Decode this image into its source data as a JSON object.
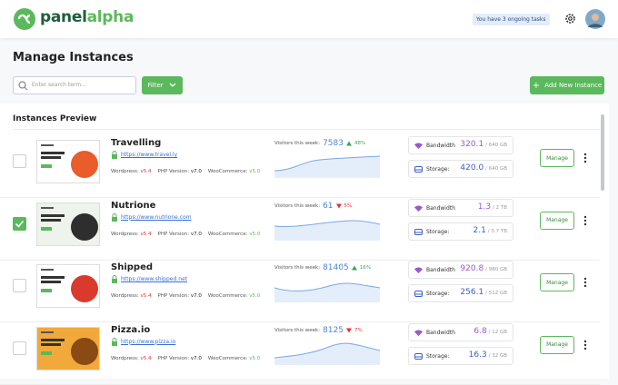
{
  "header": {
    "logo_part1": "panel",
    "logo_part2": "alpha",
    "tasks": "You have 3 ongoing tasks"
  },
  "page_title": "Manage Instances",
  "toolbar": {
    "search_placeholder": "Enter search term...",
    "filter": "Filter",
    "add": "Add New Instance"
  },
  "section_title": "Instances Preview",
  "labels": {
    "wordpress": "Wordpress:",
    "php": "PHP Version:",
    "woo": "WooCommerce:",
    "visitors": "Visitors this week:",
    "bandwidth": "Bandwidth",
    "storage": "Storage:",
    "manage": "Manage"
  },
  "instances": [
    {
      "name": "Travelling",
      "url": "https://www.travel.ly",
      "wordpress": "v5.4",
      "php": "v7.0",
      "woo": "v5.0",
      "visitors": "7583",
      "change": "48%",
      "trend": "up",
      "bandwidth": "320.1",
      "bandwidth_total": "/ 640 GB",
      "storage": "420.0",
      "storage_total": "/ 640 GB",
      "checked": false,
      "thumb": "#ffffff",
      "accent": "#e85d2a"
    },
    {
      "name": "Nutrione",
      "url": "https://www.nutrione.com",
      "wordpress": "v5.4",
      "php": "v7.0",
      "woo": "v5.0",
      "visitors": "61",
      "change": "5%",
      "trend": "down",
      "bandwidth": "1.3",
      "bandwidth_total": "/ 2 TB",
      "storage": "2.1",
      "storage_total": "/ 3.7 TB",
      "checked": true,
      "thumb": "#eef3ec",
      "accent": "#2e2e2e"
    },
    {
      "name": "Shipped",
      "url": "https://www.shipped.net",
      "wordpress": "v5.4",
      "php": "v7.0",
      "woo": "v5.0",
      "visitors": "81405",
      "change": "16%",
      "trend": "up",
      "bandwidth": "920.8",
      "bandwidth_total": "/ 980 GB",
      "storage": "256.1",
      "storage_total": "/ 512 GB",
      "checked": false,
      "thumb": "#ffffff",
      "accent": "#d93a2b"
    },
    {
      "name": "Pizza.io",
      "url": "https://www.pizza.io",
      "wordpress": "v5.4",
      "php": "v7.0",
      "woo": "v5.0",
      "visitors": "8125",
      "change": "7%",
      "trend": "down",
      "bandwidth": "6.8",
      "bandwidth_total": "/ 12 GB",
      "storage": "16.3",
      "storage_total": "/ 32 GB",
      "checked": false,
      "thumb": "#f2a93b",
      "accent": "#8a4a14"
    }
  ]
}
